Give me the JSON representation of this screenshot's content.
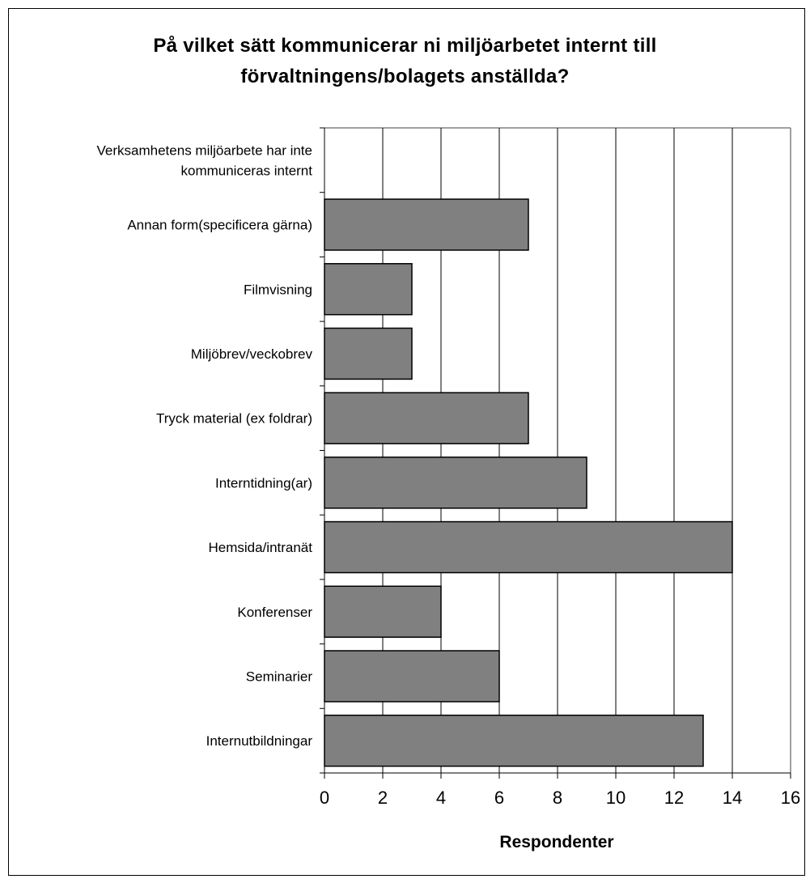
{
  "chart_data": {
    "type": "bar",
    "orientation": "horizontal",
    "title": "På vilket sätt kommunicerar ni miljöarbetet internt till förvaltningens/bolagets anställda?",
    "title_lines": [
      "På vilket sätt kommunicerar ni miljöarbetet internt till",
      "förvaltningens/bolagets anställda?"
    ],
    "categories": [
      [
        "Verksamhetens miljöarbete har inte",
        "kommuniceras internt"
      ],
      [
        "Annan form(specificera gärna)"
      ],
      [
        "Filmvisning"
      ],
      [
        "Miljöbrev/veckobrev"
      ],
      [
        "Tryck material (ex foldrar)"
      ],
      [
        "Interntidning(ar)"
      ],
      [
        "Hemsida/intranät"
      ],
      [
        "Konferenser"
      ],
      [
        "Seminarier"
      ],
      [
        "Internutbildningar"
      ]
    ],
    "values": [
      0,
      7,
      3,
      3,
      7,
      9,
      14,
      4,
      6,
      13
    ],
    "xlabel": "Respondenter",
    "ylabel": "",
    "xlim": [
      0,
      16
    ],
    "xticks": [
      "0",
      "2",
      "4",
      "6",
      "8",
      "10",
      "12",
      "14",
      "16"
    ],
    "grid": "vertical",
    "legend": "none",
    "bar_color": "#808080",
    "bar_edge_color": "#000000"
  }
}
